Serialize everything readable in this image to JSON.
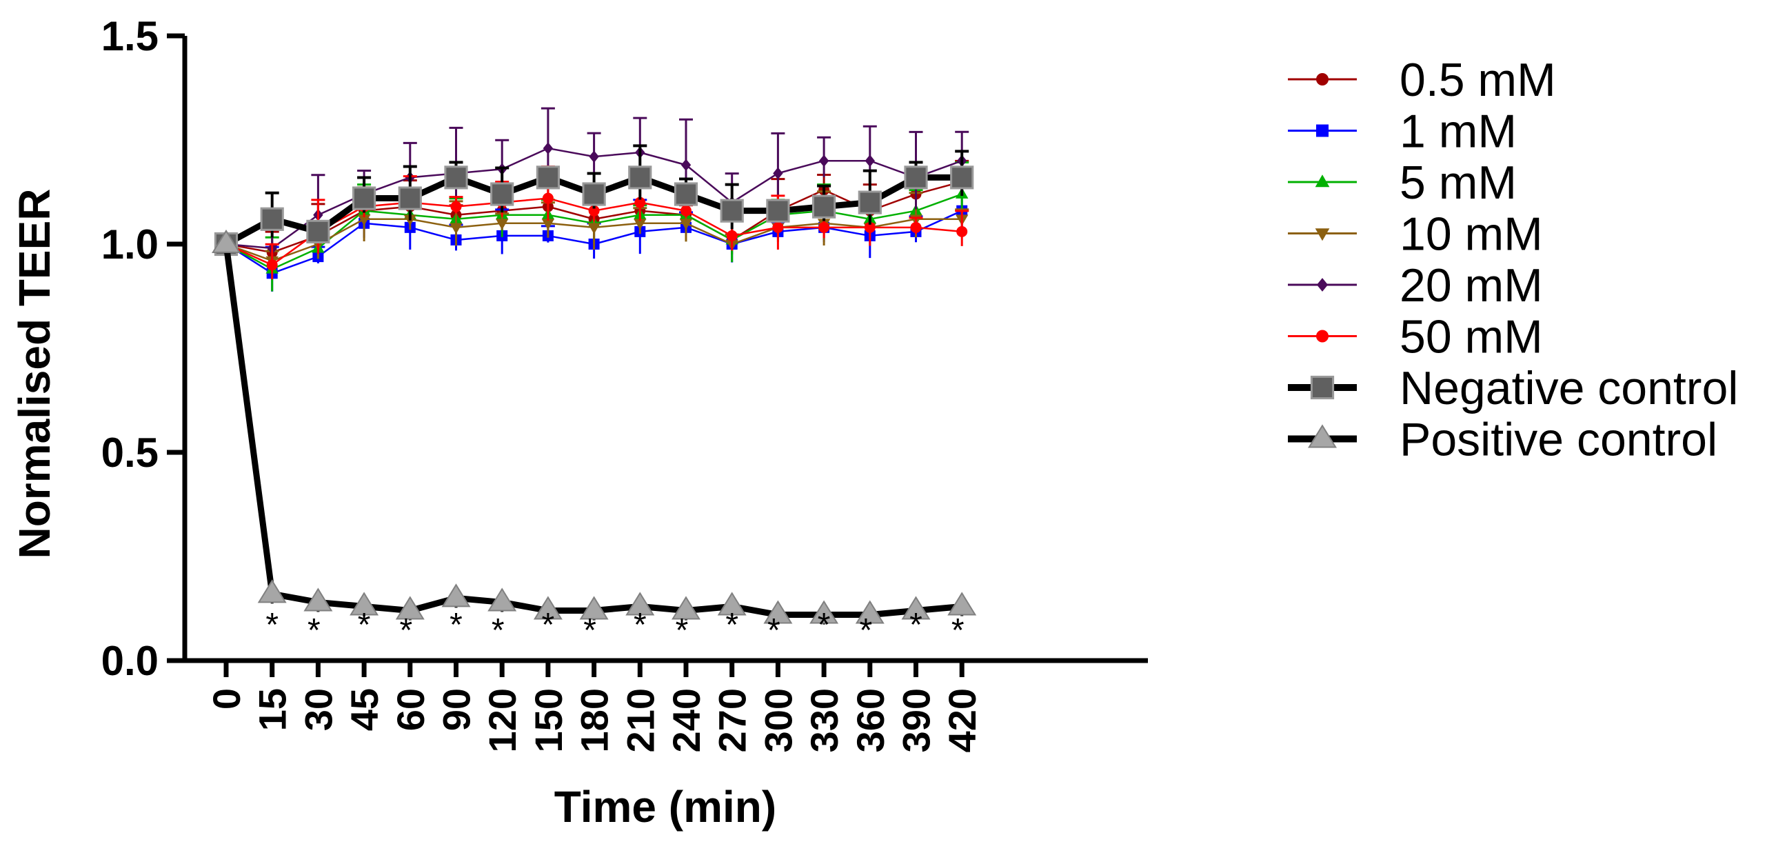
{
  "chart_data": {
    "type": "line",
    "xlabel": "Time (min)",
    "ylabel": "Normalised TEER",
    "ylim": [
      0,
      1.5
    ],
    "yticks": [
      "0.0",
      "0.5",
      "1.0",
      "1.5"
    ],
    "categories": [
      "0",
      "15",
      "30",
      "45",
      "60",
      "90",
      "120",
      "150",
      "180",
      "210",
      "240",
      "270",
      "300",
      "330",
      "360",
      "390",
      "420"
    ],
    "series": [
      {
        "name": "0.5 mM",
        "color": "#a00000",
        "marker": "circle",
        "values": [
          1.0,
          0.98,
          1.02,
          1.08,
          1.09,
          1.07,
          1.08,
          1.09,
          1.06,
          1.08,
          1.07,
          1.01,
          1.08,
          1.13,
          1.08,
          1.12,
          1.15
        ]
      },
      {
        "name": "1 mM",
        "color": "#0000ff",
        "marker": "square",
        "values": [
          1.0,
          0.93,
          0.97,
          1.05,
          1.04,
          1.01,
          1.02,
          1.02,
          1.0,
          1.03,
          1.04,
          1.0,
          1.03,
          1.04,
          1.02,
          1.03,
          1.08
        ]
      },
      {
        "name": "5 mM",
        "color": "#00b000",
        "marker": "triangle-up",
        "values": [
          1.0,
          0.94,
          0.99,
          1.08,
          1.07,
          1.06,
          1.07,
          1.07,
          1.05,
          1.07,
          1.07,
          1.01,
          1.07,
          1.08,
          1.06,
          1.08,
          1.12
        ]
      },
      {
        "name": "10 mM",
        "color": "#8c6010",
        "marker": "triangle-down",
        "values": [
          1.0,
          0.96,
          1.0,
          1.06,
          1.06,
          1.04,
          1.05,
          1.05,
          1.04,
          1.05,
          1.05,
          1.0,
          1.04,
          1.05,
          1.04,
          1.06,
          1.06
        ]
      },
      {
        "name": "20 mM",
        "color": "#4a0a5a",
        "marker": "diamond",
        "values": [
          1.0,
          0.99,
          1.07,
          1.12,
          1.16,
          1.17,
          1.18,
          1.23,
          1.21,
          1.22,
          1.19,
          1.1,
          1.17,
          1.2,
          1.2,
          1.16,
          1.2
        ]
      },
      {
        "name": "50 mM",
        "color": "#ff0000",
        "marker": "circle",
        "values": [
          1.0,
          0.95,
          1.03,
          1.09,
          1.1,
          1.09,
          1.1,
          1.11,
          1.08,
          1.1,
          1.08,
          1.02,
          1.04,
          1.04,
          1.04,
          1.04,
          1.03
        ]
      },
      {
        "name": "Negative control",
        "color": "#000000",
        "marker": "square-gray",
        "values": [
          1.0,
          1.06,
          1.03,
          1.11,
          1.11,
          1.16,
          1.12,
          1.16,
          1.12,
          1.16,
          1.12,
          1.08,
          1.08,
          1.09,
          1.1,
          1.16,
          1.16
        ]
      },
      {
        "name": "Positive control",
        "color": "#000000",
        "marker": "triangle-gray",
        "values": [
          1.0,
          0.16,
          0.14,
          0.13,
          0.12,
          0.15,
          0.14,
          0.12,
          0.12,
          0.13,
          0.12,
          0.13,
          0.11,
          0.11,
          0.11,
          0.12,
          0.13
        ]
      }
    ],
    "annotations": [
      "*",
      "*",
      "*",
      "*",
      "*",
      "*",
      "*",
      "*",
      "*",
      "*",
      "*",
      "*",
      "*",
      "*",
      "*",
      "*"
    ],
    "legend_position": "right"
  }
}
